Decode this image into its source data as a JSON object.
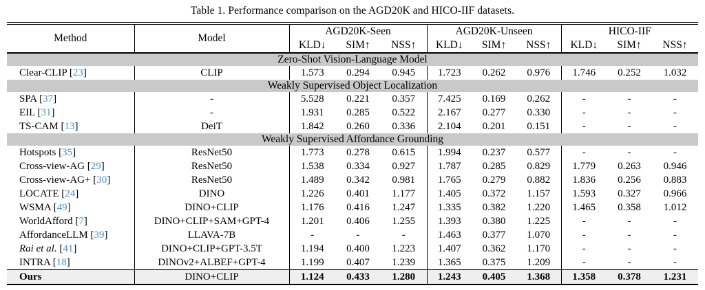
{
  "title": "Table 1. Performance comparison on the AGD20K and HICO-IIF datasets.",
  "colors": {
    "section_bg": "#c9c9c9",
    "ours_bg": "#efefef",
    "cite_blue": "#4691d3"
  },
  "table": {
    "columns": {
      "method": "Method",
      "model": "Model",
      "groups": [
        {
          "label": "AGD20K-Seen",
          "metrics": [
            "KLD↓",
            "SIM↑",
            "NSS↑"
          ]
        },
        {
          "label": "AGD20K-Unseen",
          "metrics": [
            "KLD↓",
            "SIM↑",
            "NSS↑"
          ]
        },
        {
          "label": "HICO-IIF",
          "metrics": [
            "KLD↓",
            "SIM↑",
            "NSS↑"
          ]
        }
      ]
    },
    "sections": [
      {
        "header": "Zero-Shot Vision-Language Model",
        "rows": [
          {
            "method": "Clear-CLIP",
            "cite": "23",
            "model": "CLIP",
            "values": [
              "1.573",
              "0.294",
              "0.945",
              "1.723",
              "0.262",
              "0.976",
              "1.746",
              "0.252",
              "1.032"
            ]
          }
        ]
      },
      {
        "header": "Weakly Supervised Object Localization",
        "rows": [
          {
            "method": "SPA",
            "cite": "37",
            "model": "-",
            "values": [
              "5.528",
              "0.221",
              "0.357",
              "7.425",
              "0.169",
              "0.262",
              "-",
              "-",
              "-"
            ]
          },
          {
            "method": "EIL",
            "cite": "31",
            "model": "-",
            "values": [
              "1.931",
              "0.285",
              "0.522",
              "2.167",
              "0.277",
              "0.330",
              "-",
              "-",
              "-"
            ]
          },
          {
            "method": "TS-CAM",
            "cite": "13",
            "model": "DeiT",
            "values": [
              "1.842",
              "0.260",
              "0.336",
              "2.104",
              "0.201",
              "0.151",
              "-",
              "-",
              "-"
            ]
          }
        ]
      },
      {
        "header": "Weakly Supervised Affordance Grounding",
        "rows": [
          {
            "method": "Hotspots",
            "cite": "35",
            "model": "ResNet50",
            "values": [
              "1.773",
              "0.278",
              "0.615",
              "1.994",
              "0.237",
              "0.577",
              "-",
              "-",
              "-"
            ]
          },
          {
            "method": "Cross-view-AG",
            "cite": "29",
            "model": "ResNet50",
            "values": [
              "1.538",
              "0.334",
              "0.927",
              "1.787",
              "0.285",
              "0.829",
              "1.779",
              "0.263",
              "0.946"
            ]
          },
          {
            "method": "Cross-view-AG+",
            "cite": "30",
            "model": "ResNet50",
            "values": [
              "1.489",
              "0.342",
              "0.981",
              "1.765",
              "0.279",
              "0.882",
              "1.836",
              "0.256",
              "0.883"
            ]
          },
          {
            "method": "LOCATE",
            "cite": "24",
            "model": "DINO",
            "values": [
              "1.226",
              "0.401",
              "1.177",
              "1.405",
              "0.372",
              "1.157",
              "1.593",
              "0.327",
              "0.966"
            ]
          },
          {
            "method": "WSMA",
            "cite": "49",
            "model": "DINO+CLIP",
            "values": [
              "1.176",
              "0.416",
              "1.247",
              "1.335",
              "0.382",
              "1.220",
              "1.465",
              "0.358",
              "1.012"
            ]
          },
          {
            "method": "WorldAfford",
            "cite": "7",
            "model": "DINO+CLIP+SAM+GPT-4",
            "values": [
              "1.201",
              "0.406",
              "1.255",
              "1.393",
              "0.380",
              "1.225",
              "-",
              "-",
              "-"
            ]
          },
          {
            "method": "AffordanceLLM",
            "cite": "39",
            "model": "LLAVA-7B",
            "values": [
              "-",
              "-",
              "-",
              "1.463",
              "0.377",
              "1.070",
              "-",
              "-",
              "-"
            ]
          },
          {
            "method": "Rai et al.",
            "cite": "41",
            "italic": true,
            "model": "DINO+CLIP+GPT-3.5T",
            "values": [
              "1.194",
              "0.400",
              "1.223",
              "1.407",
              "0.362",
              "1.170",
              "-",
              "-",
              "-"
            ]
          },
          {
            "method": "INTRA",
            "cite": "18",
            "model": "DINOv2+ALBEF+GPT-4",
            "values": [
              "1.199",
              "0.407",
              "1.239",
              "1.365",
              "0.375",
              "1.209",
              "-",
              "-",
              "-"
            ]
          }
        ]
      }
    ],
    "ours_row": {
      "method": "Ours",
      "model": "DINO+CLIP",
      "values": [
        "1.124",
        "0.433",
        "1.280",
        "1.243",
        "0.405",
        "1.368",
        "1.358",
        "0.378",
        "1.231"
      ]
    }
  }
}
